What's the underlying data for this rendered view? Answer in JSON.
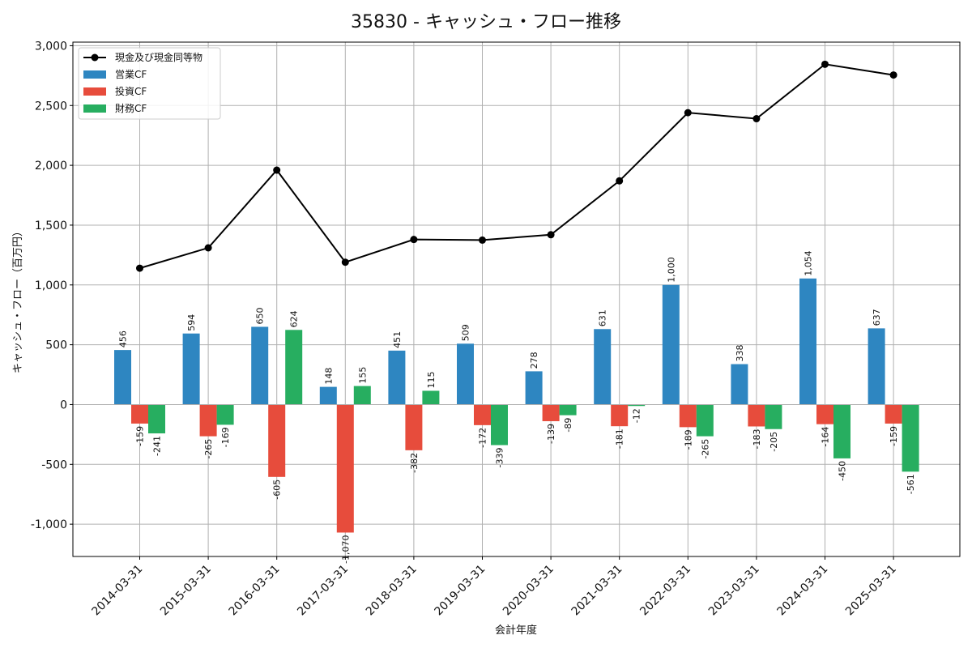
{
  "chart_data": {
    "type": "bar",
    "title": "35830 - キャッシュ・フロー推移",
    "xlabel": "会計年度",
    "ylabel": "キャッシュ・フロー（百万円）",
    "ylim": [
      -1270,
      3030
    ],
    "yticks": [
      -1000,
      -500,
      0,
      500,
      1000,
      1500,
      2000,
      2500,
      3000
    ],
    "ytick_labels": [
      "-1,000",
      "-500",
      "0",
      "500",
      "1,000",
      "1,500",
      "2,000",
      "2,500",
      "3,000"
    ],
    "grid": true,
    "legend_position": "top-left",
    "categories": [
      "2014-03-31",
      "2015-03-31",
      "2016-03-31",
      "2017-03-31",
      "2018-03-31",
      "2019-03-31",
      "2020-03-31",
      "2021-03-31",
      "2022-03-31",
      "2023-03-31",
      "2024-03-31",
      "2025-03-31"
    ],
    "series": [
      {
        "name": "営業CF",
        "type": "bar",
        "color": "#2e86c1",
        "values": [
          456,
          594,
          650,
          148,
          451,
          509,
          278,
          631,
          1000,
          338,
          1054,
          637
        ],
        "labels": [
          "456",
          "594",
          "650",
          "148",
          "451",
          "509",
          "278",
          "631",
          "1,000",
          "338",
          "1,054",
          "637"
        ]
      },
      {
        "name": "投資CF",
        "type": "bar",
        "color": "#e74c3c",
        "values": [
          -159,
          -265,
          -605,
          -1070,
          -382,
          -172,
          -139,
          -181,
          -189,
          -183,
          -164,
          -159
        ],
        "labels": [
          "-159",
          "-265",
          "-605",
          "-1,070",
          "-382",
          "-172",
          "-139",
          "-181",
          "-189",
          "-183",
          "-164",
          "-159"
        ]
      },
      {
        "name": "財務CF",
        "type": "bar",
        "color": "#27ae60",
        "values": [
          -241,
          -169,
          624,
          155,
          115,
          -339,
          -89,
          -12,
          -265,
          -205,
          -450,
          -561
        ],
        "labels": [
          "-241",
          "-169",
          "624",
          "155",
          "115",
          "-339",
          "-89",
          "-12",
          "-265",
          "-205",
          "-450",
          "-561"
        ]
      },
      {
        "name": "現金及び現金同等物",
        "type": "line",
        "color": "#000000",
        "values": [
          1140,
          1310,
          1960,
          1190,
          1380,
          1375,
          1420,
          1870,
          2440,
          2390,
          2845,
          2755
        ]
      }
    ]
  }
}
